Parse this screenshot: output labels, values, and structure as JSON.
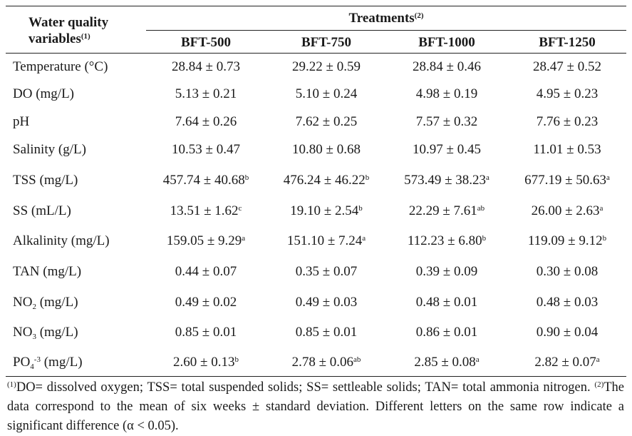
{
  "header": {
    "variable_label_line1": "Water quality",
    "variable_label_line2": "variables",
    "variable_label_sup": "(1)",
    "treatments_label": "Treatments",
    "treatments_sup": "(2)",
    "columns": [
      "BFT-500",
      "BFT-750",
      "BFT-1000",
      "BFT-1250"
    ]
  },
  "rows": [
    {
      "name": "Temperature (°C)",
      "name_sub": "",
      "name_sup": "",
      "name_after": "",
      "values": [
        {
          "v": "28.84 ± 0.73",
          "s": ""
        },
        {
          "v": "29.22 ± 0.59",
          "s": ""
        },
        {
          "v": "28.84 ± 0.46",
          "s": ""
        },
        {
          "v": "28.47 ± 0.52",
          "s": ""
        }
      ]
    },
    {
      "name": "DO (mg/L)",
      "name_sub": "",
      "name_sup": "",
      "name_after": "",
      "values": [
        {
          "v": "5.13 ± 0.21",
          "s": ""
        },
        {
          "v": "5.10 ± 0.24",
          "s": ""
        },
        {
          "v": "4.98 ± 0.19",
          "s": ""
        },
        {
          "v": "4.95 ± 0.23",
          "s": ""
        }
      ]
    },
    {
      "name": "pH",
      "name_sub": "",
      "name_sup": "",
      "name_after": "",
      "values": [
        {
          "v": "7.64 ± 0.26",
          "s": ""
        },
        {
          "v": "7.62 ± 0.25",
          "s": ""
        },
        {
          "v": "7.57 ± 0.32",
          "s": ""
        },
        {
          "v": "7.76 ± 0.23",
          "s": ""
        }
      ]
    },
    {
      "name": "Salinity (g/L)",
      "name_sub": "",
      "name_sup": "",
      "name_after": "",
      "values": [
        {
          "v": "10.53 ± 0.47",
          "s": ""
        },
        {
          "v": "10.80 ± 0.68",
          "s": ""
        },
        {
          "v": "10.97 ± 0.45",
          "s": ""
        },
        {
          "v": "11.01 ± 0.53",
          "s": ""
        }
      ]
    },
    {
      "name": "TSS (mg/L)",
      "name_sub": "",
      "name_sup": "",
      "name_after": "",
      "values": [
        {
          "v": "457.74 ± 40.68",
          "s": "b"
        },
        {
          "v": "476.24 ± 46.22",
          "s": "b"
        },
        {
          "v": "573.49 ± 38.23",
          "s": "a"
        },
        {
          "v": "677.19 ± 50.63",
          "s": "a"
        }
      ]
    },
    {
      "name": "SS (mL/L)",
      "name_sub": "",
      "name_sup": "",
      "name_after": "",
      "values": [
        {
          "v": "13.51 ± 1.62",
          "s": "c"
        },
        {
          "v": "19.10 ± 2.54",
          "s": "b"
        },
        {
          "v": "22.29 ± 7.61",
          "s": "ab"
        },
        {
          "v": "26.00 ± 2.63",
          "s": "a"
        }
      ]
    },
    {
      "name": "Alkalinity (mg/L)",
      "name_sub": "",
      "name_sup": "",
      "name_after": "",
      "values": [
        {
          "v": "159.05 ± 9.29",
          "s": "a"
        },
        {
          "v": "151.10 ± 7.24",
          "s": "a"
        },
        {
          "v": "112.23 ± 6.80",
          "s": "b"
        },
        {
          "v": "119.09 ± 9.12",
          "s": "b"
        }
      ]
    },
    {
      "name": "TAN (mg/L)",
      "name_sub": "",
      "name_sup": "",
      "name_after": "",
      "values": [
        {
          "v": "0.44 ± 0.07",
          "s": ""
        },
        {
          "v": "0.35 ± 0.07",
          "s": ""
        },
        {
          "v": "0.39 ± 0.09",
          "s": ""
        },
        {
          "v": "0.30 ± 0.08",
          "s": ""
        }
      ]
    },
    {
      "name": "NO",
      "name_sub": "2",
      "name_sup": "",
      "name_after": " (mg/L)",
      "values": [
        {
          "v": "0.49 ± 0.02",
          "s": ""
        },
        {
          "v": "0.49 ± 0.03",
          "s": ""
        },
        {
          "v": "0.48 ± 0.01",
          "s": ""
        },
        {
          "v": "0.48 ± 0.03",
          "s": ""
        }
      ]
    },
    {
      "name": "NO",
      "name_sub": "3",
      "name_sup": "",
      "name_after": " (mg/L)",
      "values": [
        {
          "v": "0.85 ± 0.01",
          "s": ""
        },
        {
          "v": "0.85 ± 0.01",
          "s": ""
        },
        {
          "v": "0.86 ± 0.01",
          "s": ""
        },
        {
          "v": "0.90 ± 0.04",
          "s": ""
        }
      ]
    },
    {
      "name": "PO",
      "name_sub": "4",
      "name_sup": "-3",
      "name_after": " (mg/L)",
      "values": [
        {
          "v": "2.60 ± 0.13",
          "s": "b"
        },
        {
          "v": "2.78 ± 0.06",
          "s": "ab"
        },
        {
          "v": "2.85 ± 0.08",
          "s": "a"
        },
        {
          "v": "2.82 ± 0.07",
          "s": "a"
        }
      ]
    }
  ],
  "footnote": {
    "sup1": "(1)",
    "text1": "DO= dissolved oxygen; TSS= total suspended solids; SS= settleable solids; TAN= total ammonia nitrogen. ",
    "sup2": "(2)",
    "text2": "The data correspond to the mean of six weeks ± standard deviation. Different letters on the same row indicate a significant difference (α < 0.05)."
  }
}
